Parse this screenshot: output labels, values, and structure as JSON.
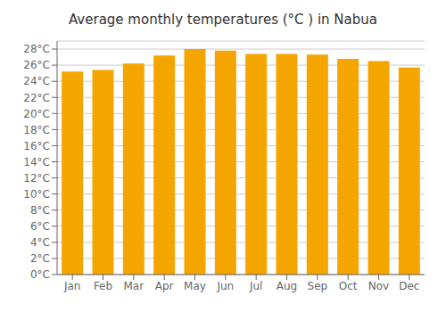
{
  "chart_data": {
    "type": "bar",
    "title": "Average monthly temperatures (°C ) in Nabua",
    "categories": [
      "Jan",
      "Feb",
      "Mar",
      "Apr",
      "May",
      "Jun",
      "Jul",
      "Aug",
      "Sep",
      "Oct",
      "Nov",
      "Dec"
    ],
    "values": [
      25.2,
      25.4,
      26.2,
      27.2,
      28.0,
      27.8,
      27.4,
      27.4,
      27.3,
      26.8,
      26.5,
      25.7
    ],
    "color": "#F5A500",
    "ylim": [
      0,
      29
    ],
    "yticks": [
      {
        "value": 0,
        "label": "0°C"
      },
      {
        "value": 2,
        "label": "2°C"
      },
      {
        "value": 4,
        "label": "4°C"
      },
      {
        "value": 6,
        "label": "6°C"
      },
      {
        "value": 8,
        "label": "8°C"
      },
      {
        "value": 10,
        "label": "10°C"
      },
      {
        "value": 12,
        "label": "12°C"
      },
      {
        "value": 14,
        "label": "14°C"
      },
      {
        "value": 16,
        "label": "16°C"
      },
      {
        "value": 18,
        "label": "18°C"
      },
      {
        "value": 20,
        "label": "20°C"
      },
      {
        "value": 22,
        "label": "22°C"
      },
      {
        "value": 24,
        "label": "24°C"
      },
      {
        "value": 26,
        "label": "26°C"
      },
      {
        "value": 28,
        "label": "28°C"
      }
    ],
    "grid": true
  }
}
